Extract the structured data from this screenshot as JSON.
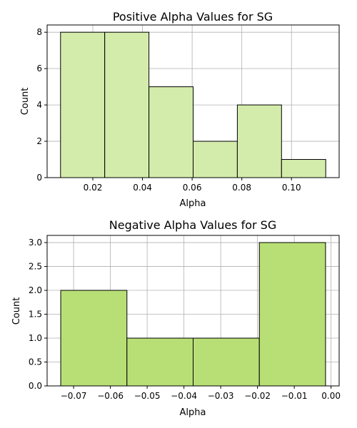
{
  "chart_data": [
    {
      "type": "bar",
      "title": "Positive Alpha Values for SG",
      "xlabel": "Alpha",
      "ylabel": "Count",
      "bin_edges": [
        0.007,
        0.0248,
        0.0426,
        0.0604,
        0.0782,
        0.096,
        0.1138
      ],
      "values": [
        8,
        8,
        5,
        2,
        4,
        1
      ],
      "xlim": [
        0.0016,
        0.1192
      ],
      "ylim": [
        0,
        8.4
      ],
      "xticks": [
        0.02,
        0.04,
        0.06,
        0.08,
        0.1
      ],
      "xtick_labels": [
        "0.02",
        "0.04",
        "0.06",
        "0.08",
        "0.10"
      ],
      "yticks": [
        0,
        2,
        4,
        6,
        8
      ],
      "ytick_labels": [
        "0",
        "2",
        "4",
        "6",
        "8"
      ],
      "grid": true,
      "bar_color": "#d4ecab"
    },
    {
      "type": "bar",
      "title": "Negative Alpha Values for SG",
      "xlabel": "Alpha",
      "ylabel": "Count",
      "bin_edges": [
        -0.0735,
        -0.0555,
        -0.0375,
        -0.0195,
        -0.0015
      ],
      "values": [
        2,
        1,
        1,
        3
      ],
      "xlim": [
        -0.0772,
        0.0022
      ],
      "ylim": [
        0,
        3.15
      ],
      "xticks": [
        -0.07,
        -0.06,
        -0.05,
        -0.04,
        -0.03,
        -0.02,
        -0.01,
        0.0
      ],
      "xtick_labels": [
        "−0.07",
        "−0.06",
        "−0.05",
        "−0.04",
        "−0.03",
        "−0.02",
        "−0.01",
        "0.00"
      ],
      "yticks": [
        0,
        0.5,
        1.0,
        1.5,
        2.0,
        2.5,
        3.0
      ],
      "ytick_labels": [
        "0.0",
        "0.5",
        "1.0",
        "1.5",
        "2.0",
        "2.5",
        "3.0"
      ],
      "grid": true,
      "bar_color": "#b8df76"
    }
  ]
}
